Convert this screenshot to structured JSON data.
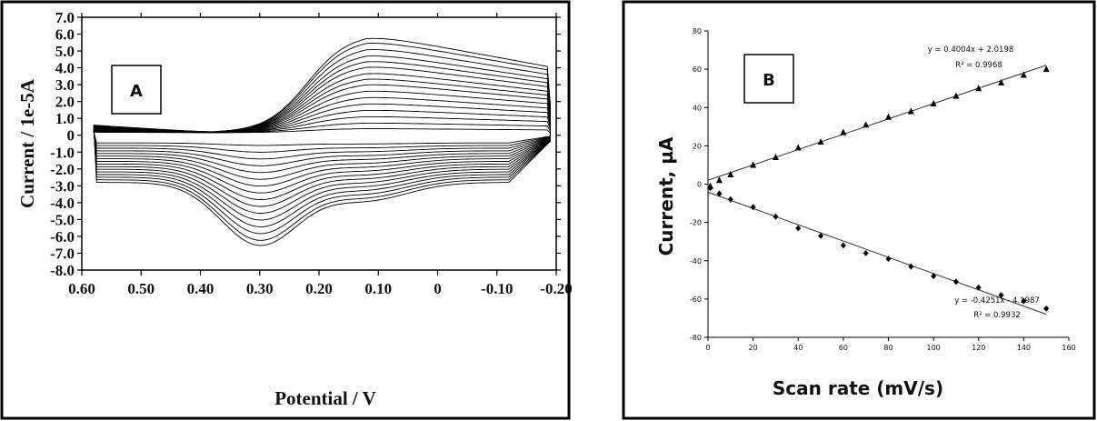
{
  "figure": {
    "panel_a": {
      "panel_label": "A"
    },
    "panel_b": {
      "panel_label": "B"
    }
  },
  "chart_data": [
    {
      "id": "A",
      "type": "line",
      "title": "",
      "xlabel": "Potential / V",
      "ylabel": "Current / 1e-5A",
      "x_inverted": true,
      "xlim": [
        0.6,
        -0.2
      ],
      "ylim": [
        -8.0,
        7.0
      ],
      "x_ticks": [
        0.6,
        0.5,
        0.4,
        0.3,
        0.2,
        0.1,
        0,
        -0.1,
        -0.2
      ],
      "x_tick_labels": [
        "0.60",
        "0.50",
        "0.40",
        "0.30",
        "0.20",
        "0.10",
        "0",
        "-0.10",
        "-0.20"
      ],
      "y_ticks": [
        7,
        6,
        5,
        4,
        3,
        2,
        1,
        0,
        -1,
        -2,
        -3,
        -4,
        -5,
        -6,
        -7,
        -8
      ],
      "y_tick_labels": [
        "7.0",
        "6.0",
        "5.0",
        "4.0",
        "3.0",
        "2.0",
        "1.0",
        "0",
        "-1.0",
        "-2.0",
        "-3.0",
        "-4.0",
        "-5.0",
        "-6.0",
        "-7.0",
        "-8.0"
      ],
      "curve_count": 16,
      "anodic_peak": {
        "potential": 0.12,
        "current_max": 6.0
      },
      "cathodic_peak": {
        "potential": 0.3,
        "current_min": -6.5
      },
      "anodic_peak_currents": [
        0.35,
        0.7,
        1.1,
        1.5,
        1.9,
        2.3,
        2.7,
        3.1,
        3.45,
        3.8,
        4.2,
        4.55,
        4.9,
        5.3,
        5.7,
        6.0
      ],
      "cathodic_peak_currents": [
        -0.6,
        -1.0,
        -1.4,
        -1.8,
        -2.2,
        -2.6,
        -3.0,
        -3.4,
        -3.8,
        -4.2,
        -4.6,
        -5.0,
        -5.4,
        -5.8,
        -6.2,
        -6.5
      ],
      "grid": false,
      "legend": "none"
    },
    {
      "id": "B",
      "type": "scatter",
      "title": "",
      "xlabel": "Scan rate (mV/s)",
      "ylabel": "Current, µA",
      "xlim": [
        0,
        160
      ],
      "ylim": [
        -80,
        80
      ],
      "x_ticks": [
        0,
        20,
        40,
        60,
        80,
        100,
        120,
        140,
        160
      ],
      "y_ticks": [
        80,
        60,
        40,
        20,
        0,
        -20,
        -40,
        -60,
        -80
      ],
      "grid": false,
      "legend": "none",
      "series": [
        {
          "marker": "triangle",
          "x": [
            1,
            5,
            10,
            20,
            30,
            40,
            50,
            60,
            70,
            80,
            90,
            100,
            110,
            120,
            130,
            140,
            150
          ],
          "values": [
            -1,
            2,
            5,
            10,
            14,
            19,
            22,
            27,
            31,
            35,
            38,
            42,
            46,
            50,
            53,
            57,
            60
          ],
          "fit": {
            "slope": 0.4004,
            "intercept": 2.0198,
            "equation": "y = 0.4004x + 2.0198",
            "r2": "R² = 0.9968"
          }
        },
        {
          "marker": "diamond",
          "x": [
            1,
            5,
            10,
            20,
            30,
            40,
            50,
            60,
            70,
            80,
            90,
            100,
            110,
            120,
            130,
            140,
            150
          ],
          "values": [
            -2,
            -5,
            -8,
            -12,
            -17,
            -23,
            -27,
            -32,
            -36,
            -39,
            -43,
            -48,
            -51,
            -54,
            -58,
            -61,
            -65
          ],
          "fit": {
            "slope": -0.4251,
            "intercept": -4.1987,
            "equation": "y = -0.4251x - 4.1987",
            "r2": "R² = 0.9932"
          }
        }
      ]
    }
  ]
}
